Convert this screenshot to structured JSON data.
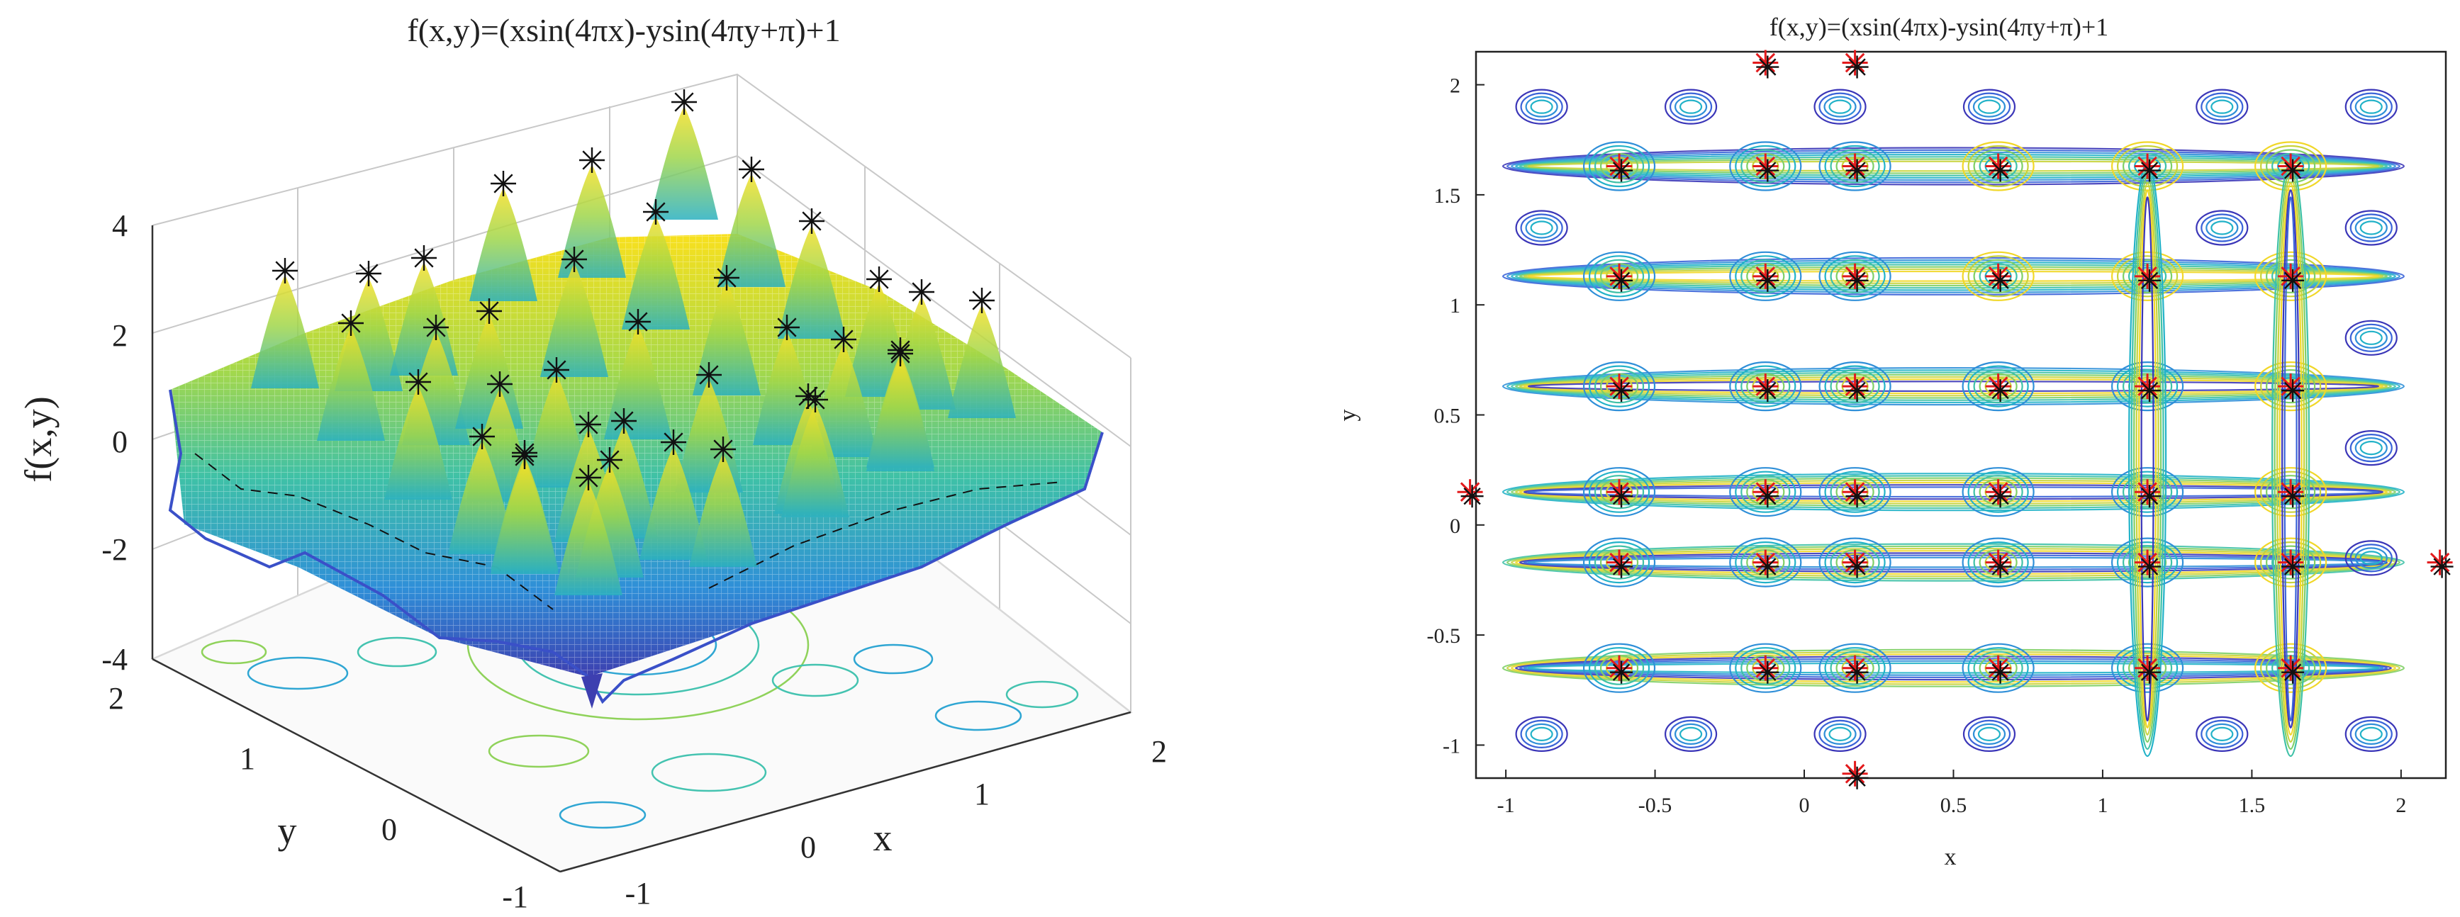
{
  "chart_data": [
    {
      "type": "surface",
      "title": "f(x,y)=(xsin(4πx)-ysin(4πy+π)+1",
      "xlabel": "x",
      "ylabel": "y",
      "zlabel": "f(x,y)",
      "x_ticks": [
        "-1",
        "0",
        "1",
        "2"
      ],
      "y_ticks": [
        "-1",
        "0",
        "1",
        "2"
      ],
      "z_ticks": [
        "4",
        "2",
        "0",
        "-2",
        "-4"
      ],
      "xlim": [
        -1,
        2
      ],
      "ylim": [
        -1,
        2
      ],
      "zlim": [
        -4,
        4
      ],
      "grid": true,
      "colormap": "parula",
      "peak_marker": "*",
      "peak_marker_color": "#111111"
    },
    {
      "type": "contour",
      "title": "f(x,y)=(xsin(4πx)-ysin(4πy+π)+1",
      "xlabel": "x",
      "ylabel": "y",
      "x_ticks": [
        "-1",
        "-0.5",
        "0",
        "0.5",
        "1",
        "1.5",
        "2"
      ],
      "y_ticks": [
        "2",
        "1.5",
        "1",
        "0.5",
        "0",
        "-0.5",
        "-1"
      ],
      "xlim": [
        -1.1,
        2.15
      ],
      "ylim": [
        -1.15,
        2.15
      ],
      "colormap": "parula",
      "marker_colors": {
        "found": "#e31a1c",
        "true": "#111111"
      },
      "peak_x": [
        -0.62,
        -0.13,
        0.17,
        0.65,
        1.15,
        1.63
      ],
      "peak_y": [
        1.63,
        1.13,
        0.63,
        0.15,
        -0.17,
        -0.65
      ],
      "extra_points": [
        {
          "x": -1.12,
          "y": 0.15
        },
        {
          "x": 2.13,
          "y": -0.17
        },
        {
          "x": -0.13,
          "y": 2.1
        },
        {
          "x": 0.17,
          "y": 2.1
        },
        {
          "x": 0.17,
          "y": -1.13
        }
      ]
    }
  ]
}
